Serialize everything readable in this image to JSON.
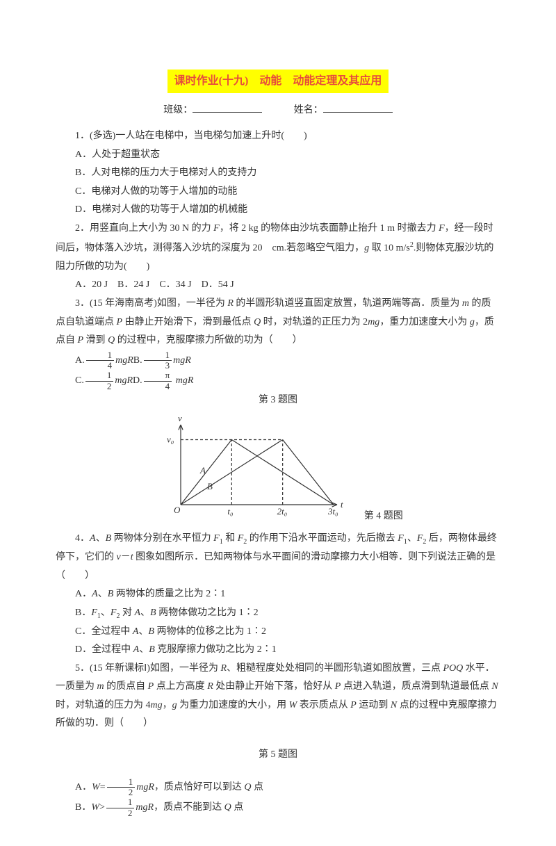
{
  "title": "课时作业(十九)　动能　动能定理及其应用",
  "header": {
    "class_label": "班级：",
    "name_label": "姓名："
  },
  "q1": {
    "stem": "1．(多选)一人站在电梯中，当电梯匀加速上升时(　　)",
    "a": "A．人处于超重状态",
    "b": "B．人对电梯的压力大于电梯对人的支持力",
    "c": "C．电梯对人做的功等于人增加的动能",
    "d": "D．电梯对人做的功等于人增加的机械能"
  },
  "q2": {
    "stem1": "2．用竖直向上大小为 30 N 的力 ",
    "stem2": "，将 2 kg 的物体由沙坑表面静止抬升 1 m 时撤去力 ",
    "stem3": "，经一段时间后，物体落入沙坑，测得落入沙坑的深度为 20　cm.若忽略空气阻力，",
    "stem4": " 取 10 m/s",
    "stem5": ".则物体克服沙坑的阻力所做的功为(　　)",
    "opts": "A．20 J　B．24 J　C．34 J　D．54 J"
  },
  "q3": {
    "stem1": "3．(15 年海南高考)如图，一半径为 ",
    "stem2": " 的半圆形轨道竖直固定放置，轨道两端等高．质量为 ",
    "stem3": " 的质点自轨道端点 ",
    "stem4": " 由静止开始滑下，滑到最低点 ",
    "stem5": " 时，对轨道的正压力为 2",
    "stem6": "，重力加速度大小为 ",
    "stem7": "，质点自 ",
    "stem8": " 滑到 ",
    "stem9": " 的过程中，克服摩擦力所做的功为（　　）",
    "figlabel": "第 3 题图"
  },
  "q4": {
    "figlabel": "第 4 题图",
    "stem1": "4．",
    "stem2": " 两物体分别在水平恒力 ",
    "stem3": " 和 ",
    "stem4": " 的作用下沿水平面运动，先后撤去 ",
    "stem5": " 后，两物体最终停下，它们的 ",
    "stem6": " 图象如图所示．已知两物体与水平面间的滑动摩擦力大小相等．则下列说法正确的是（　　）",
    "a1": "A．",
    "a2": " 两物体的质量之比为 2∶1",
    "b1": "B．",
    "b2": " 对 ",
    "b3": " 两物体做功之比为 1∶2",
    "c1": "C．全过程中 ",
    "c2": " 两物体的位移之比为 1∶2",
    "d1": "D．全过程中 ",
    "d2": " 克服摩擦力做功之比为 2∶1"
  },
  "q5": {
    "stem1": "5．(15 年新课标Ⅰ)如图，一半径为 ",
    "stem2": "、粗糙程度处处相同的半圆形轨道如图放置，三点 ",
    "stem3": " 水平．一质量为 ",
    "stem4": " 的质点自 ",
    "stem5": " 点上方高度 ",
    "stem6": " 处由静止开始下落，恰好从 ",
    "stem7": " 点进入轨道，质点滑到轨道最低点 ",
    "stem8": " 时，对轨道的压力为 4",
    "stem9": " 为重力加速度的大小，用 ",
    "stem10": " 表示质点从 ",
    "stem11": " 运动到 ",
    "stem12": " 点的过程中克服摩擦力所做的功．则（　　）",
    "figlabel": "第 5 题图",
    "a2": "，质点恰好可以到达 ",
    "a3": " 点",
    "b2": "，质点不能到达 ",
    "b3": " 点"
  },
  "chart": {
    "axis_color": "#333",
    "dash_color": "#333",
    "line_width": 1.2,
    "v_label": "v",
    "v0_label": "v₀",
    "t_label": "t",
    "t0": "t₀",
    "t1": "2t₀",
    "t2": "3t₀",
    "A": "A",
    "B": "B",
    "O": "O"
  }
}
